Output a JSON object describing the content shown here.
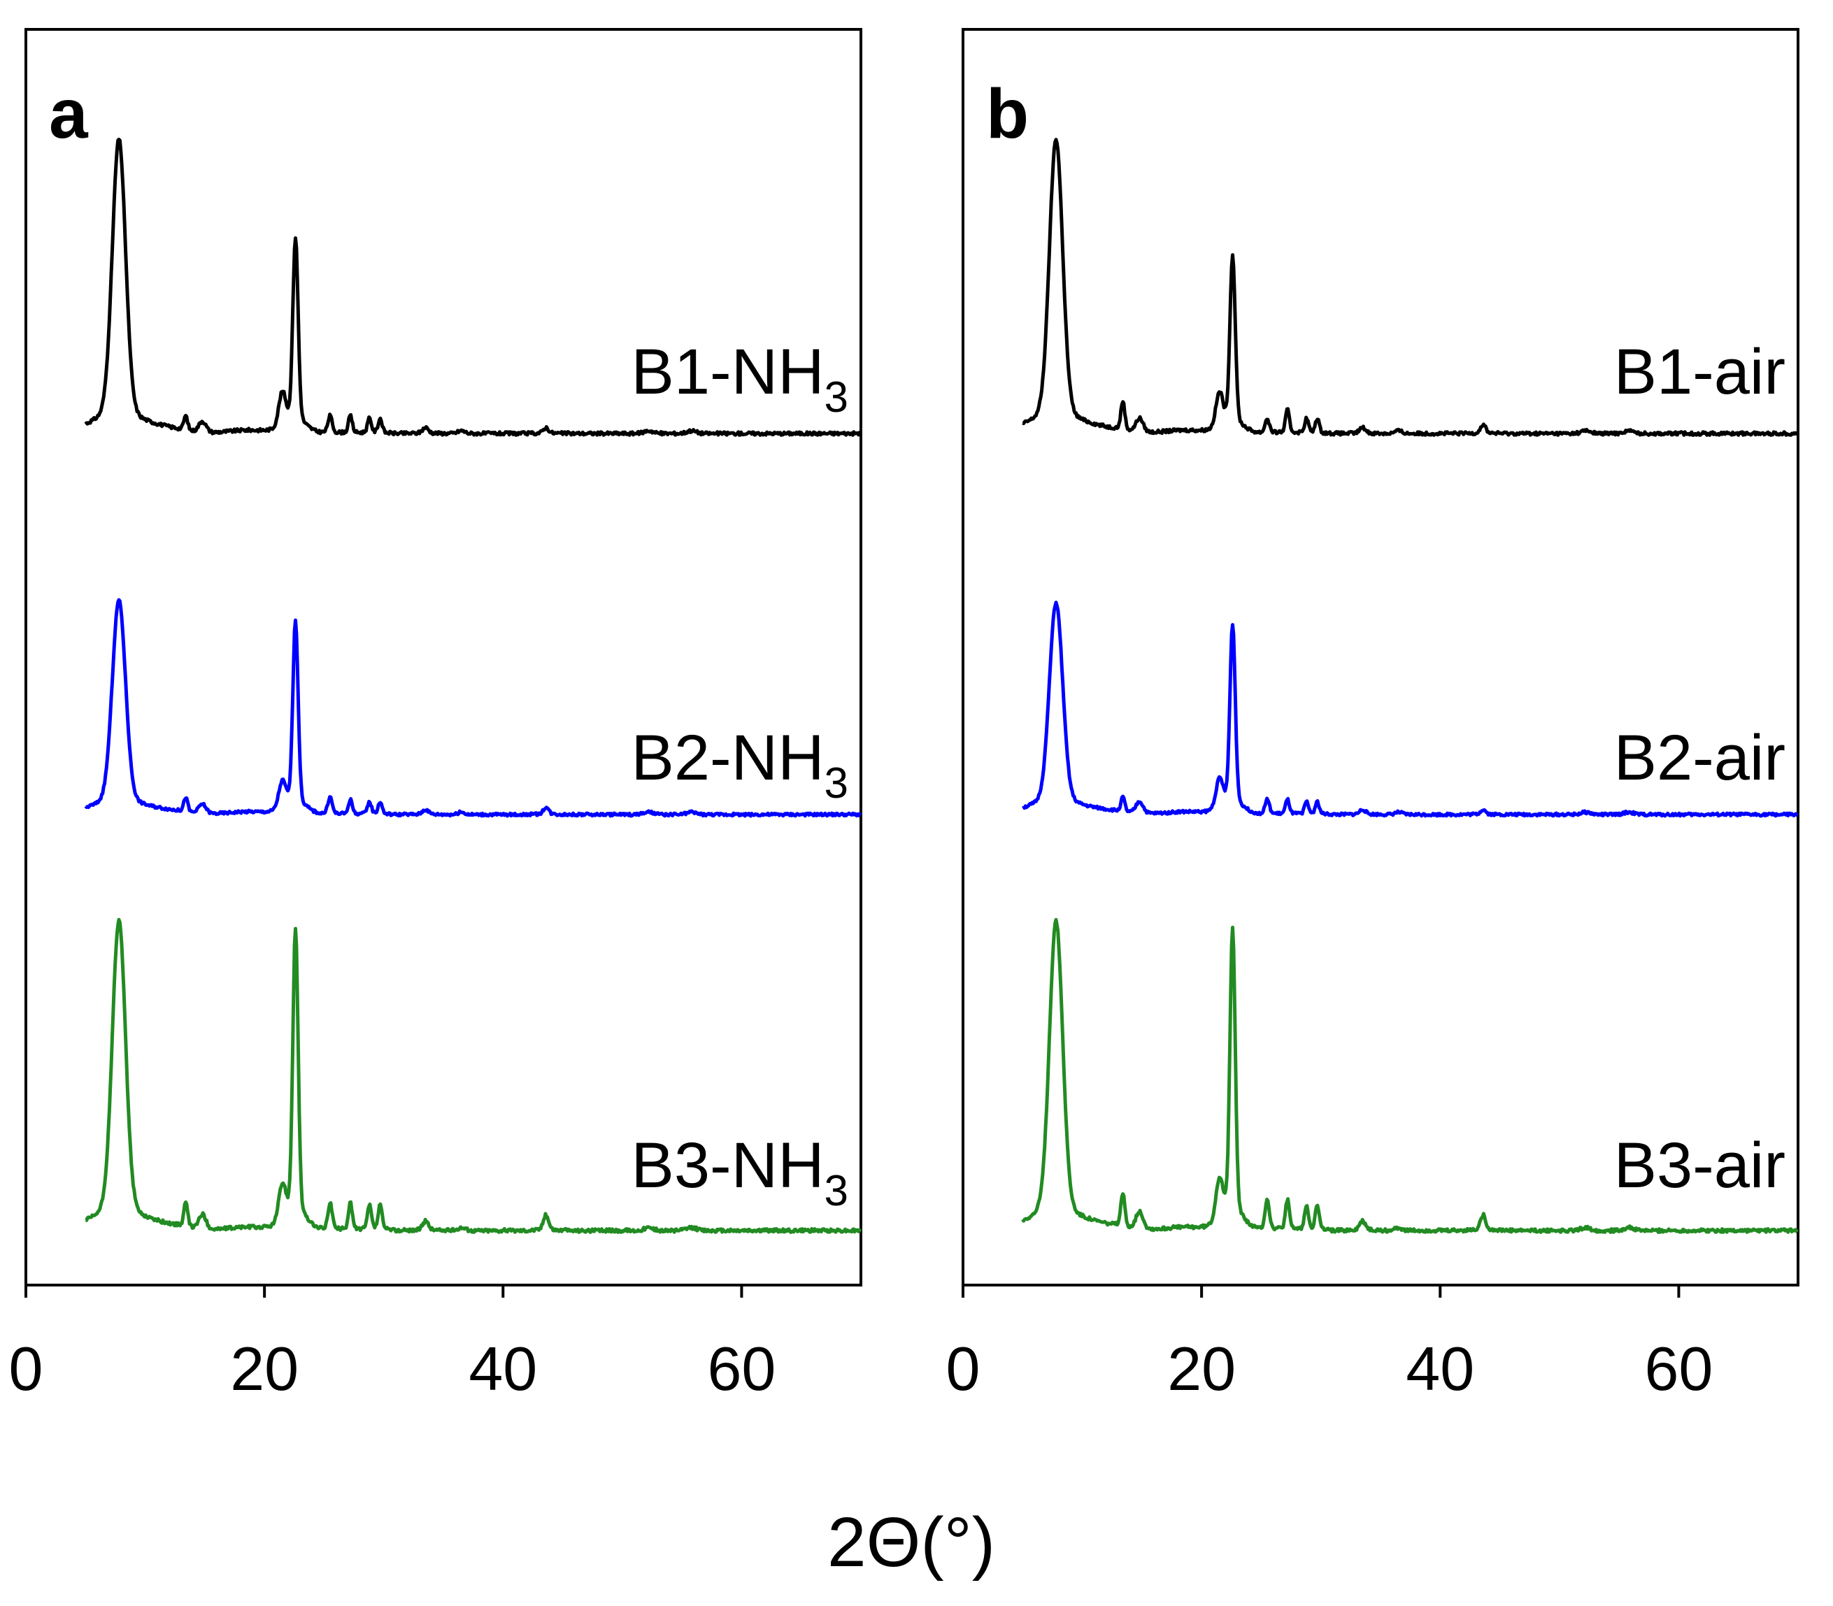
{
  "figure": {
    "x_axis_title": "2Θ(°)"
  },
  "chart_data": [
    {
      "type": "line",
      "panel": "a",
      "xlabel": "2Θ(°)",
      "ylabel": "",
      "xlim": [
        0,
        70
      ],
      "x_ticks": [
        0,
        20,
        40,
        60
      ],
      "grid": false,
      "y_ticks_shown": false,
      "peaks_2theta": [
        7.8,
        13.4,
        14.8,
        21.5,
        22.6,
        25.5,
        27.2,
        28.8,
        29.7,
        33.5,
        43.6
      ],
      "series": [
        {
          "name": "B1-NH3",
          "label_main": "B1-NH",
          "label_sub": "3",
          "color": "#000000",
          "x_range": [
            5,
            70
          ],
          "peak_intensities": [
            1.0,
            0.05,
            0.04,
            0.12,
            0.66,
            0.06,
            0.06,
            0.05,
            0.05,
            0.02,
            0.02
          ]
        },
        {
          "name": "B2-NH3",
          "label_main": "B2-NH",
          "label_sub": "3",
          "color": "#0000ff",
          "x_range": [
            5,
            70
          ],
          "peak_intensities": [
            0.86,
            0.06,
            0.04,
            0.11,
            0.77,
            0.07,
            0.06,
            0.05,
            0.05,
            0.02,
            0.03
          ]
        },
        {
          "name": "B3-NH3",
          "label_main": "B3-NH",
          "label_sub": "3",
          "color": "#228b22",
          "x_range": [
            5,
            70
          ],
          "peak_intensities": [
            1.0,
            0.08,
            0.05,
            0.12,
            0.97,
            0.09,
            0.09,
            0.08,
            0.08,
            0.03,
            0.05
          ]
        }
      ]
    },
    {
      "type": "line",
      "panel": "b",
      "xlabel": "2Θ(°)",
      "ylabel": "",
      "xlim": [
        0,
        70
      ],
      "x_ticks": [
        0,
        20,
        40,
        60
      ],
      "grid": false,
      "y_ticks_shown": false,
      "peaks_2theta": [
        7.8,
        13.4,
        14.8,
        21.5,
        22.6,
        25.5,
        27.2,
        28.8,
        29.7,
        33.5,
        43.6
      ],
      "series": [
        {
          "name": "B1-air",
          "label_main": "B1-air",
          "label_sub": "",
          "color": "#000000",
          "x_range": [
            5,
            70
          ],
          "peak_intensities": [
            1.0,
            0.1,
            0.05,
            0.12,
            0.6,
            0.05,
            0.08,
            0.05,
            0.05,
            0.02,
            0.03
          ]
        },
        {
          "name": "B2-air",
          "label_main": "B2-air",
          "label_sub": "",
          "color": "#0000ff",
          "x_range": [
            5,
            70
          ],
          "peak_intensities": [
            0.85,
            0.06,
            0.05,
            0.12,
            0.76,
            0.06,
            0.06,
            0.05,
            0.05,
            0.02,
            0.02
          ]
        },
        {
          "name": "B3-air",
          "label_main": "B3-air",
          "label_sub": "",
          "color": "#228b22",
          "x_range": [
            5,
            70
          ],
          "peak_intensities": [
            1.0,
            0.11,
            0.06,
            0.14,
            0.97,
            0.1,
            0.1,
            0.08,
            0.08,
            0.03,
            0.05
          ]
        }
      ]
    }
  ]
}
